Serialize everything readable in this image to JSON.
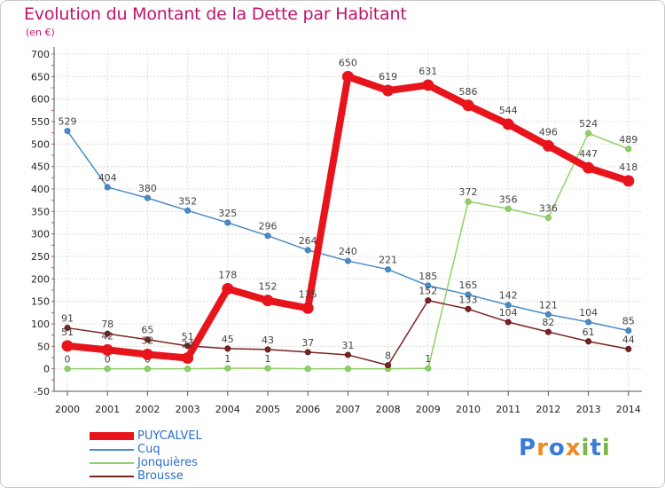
{
  "header": {
    "title": "Evolution du Montant de la Dette par Habitant",
    "subtitle": "(en €)"
  },
  "logo": {
    "text": "Proxiti",
    "letters": [
      "P",
      "r",
      "o",
      "x",
      "i",
      "t",
      "i"
    ],
    "colors": [
      "#3a7bd5",
      "#f08a24",
      "#3a7bd5",
      "#f08a24",
      "#7ab648",
      "#3a7bd5",
      "#7ab648"
    ]
  },
  "chart_data": {
    "type": "line",
    "title": "Evolution du Montant de la Dette par Habitant",
    "subtitle": "(en €)",
    "xlabel": "",
    "ylabel": "",
    "x": [
      "2000",
      "2001",
      "2002",
      "2003",
      "2004",
      "2005",
      "2006",
      "2007",
      "2008",
      "2009",
      "2010",
      "2011",
      "2012",
      "2013",
      "2014"
    ],
    "ylim": [
      -50,
      700
    ],
    "yticks": [
      -50,
      0,
      50,
      100,
      150,
      200,
      250,
      300,
      350,
      400,
      450,
      500,
      550,
      600,
      650,
      700
    ],
    "grid": true,
    "legend_position": "bottom-left",
    "series": [
      {
        "name": "Cuq",
        "color": "#4a8cc8",
        "values": [
          529,
          404,
          380,
          352,
          325,
          296,
          264,
          240,
          221,
          185,
          165,
          142,
          121,
          104,
          85
        ]
      },
      {
        "name": "Jonquières",
        "color": "#8fd068",
        "values": [
          0,
          0,
          0,
          0,
          1,
          1,
          0,
          0,
          0,
          1,
          372,
          356,
          336,
          524,
          489
        ],
        "labels": [
          "0",
          "0",
          "0",
          "",
          "1",
          "1",
          "",
          "",
          "",
          "1",
          "372",
          "356",
          "336",
          "524",
          "489"
        ]
      },
      {
        "name": "Brousse",
        "color": "#7a2222",
        "values": [
          91,
          78,
          65,
          51,
          45,
          43,
          37,
          31,
          8,
          152,
          133,
          104,
          82,
          61,
          44
        ]
      },
      {
        "name": "PUYCALVEL",
        "color": "#e8141c",
        "values": [
          51,
          42,
          32,
          24,
          178,
          152,
          135,
          650,
          619,
          631,
          586,
          544,
          496,
          447,
          418
        ]
      }
    ],
    "legend_order": [
      "PUYCALVEL",
      "Cuq",
      "Jonquières",
      "Brousse"
    ]
  }
}
